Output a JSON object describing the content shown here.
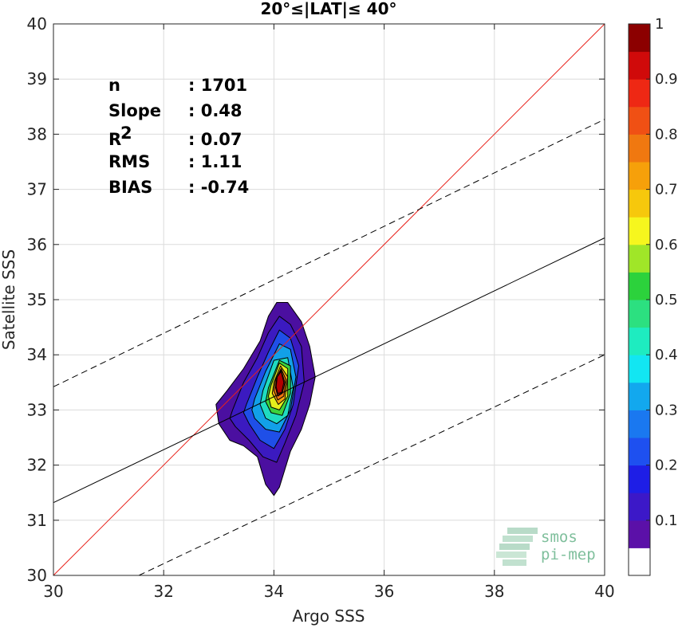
{
  "chart_data": {
    "type": "scatter",
    "subtype": "density-contour",
    "title": "20°≤|LAT|≤ 40°",
    "xlabel": "Argo SSS",
    "ylabel": "Satellite SSS",
    "xlim": [
      30,
      40
    ],
    "ylim": [
      30,
      40
    ],
    "xticks": [
      "30",
      "32",
      "34",
      "36",
      "38",
      "40"
    ],
    "yticks": [
      "30",
      "31",
      "32",
      "33",
      "34",
      "35",
      "36",
      "37",
      "38",
      "39",
      "40"
    ],
    "grid": true,
    "stats": [
      {
        "label": "n",
        "value": ": 1701"
      },
      {
        "label": "Slope",
        "value": ": 0.48"
      },
      {
        "label": "R",
        "sup": "2",
        "value": ": 0.07"
      },
      {
        "label": "RMS",
        "value": ": 1.11"
      },
      {
        "label": "BIAS",
        "value": ": -0.74"
      }
    ],
    "lines": [
      {
        "kind": "one-to-one",
        "color": "#e8221b",
        "style": "solid",
        "x": [
          30,
          40
        ],
        "y": [
          30,
          40
        ]
      },
      {
        "kind": "regression-fit",
        "color": "#000000",
        "style": "solid",
        "x": [
          30,
          40
        ],
        "y": [
          31.32,
          36.12
        ]
      },
      {
        "kind": "upper-bound",
        "color": "#000000",
        "style": "dashed",
        "x": [
          30,
          40
        ],
        "y": [
          33.42,
          38.27
        ]
      },
      {
        "kind": "lower-bound",
        "color": "#000000",
        "style": "dashed",
        "x": [
          31.55,
          40
        ],
        "y": [
          30.0,
          34.0
        ]
      }
    ],
    "density_center": {
      "x": 34.1,
      "y": 33.5
    },
    "contours": [
      {
        "level": 0.05,
        "color": "#4b0fa0",
        "x": [
          32.95,
          33.15,
          33.45,
          33.75,
          33.9,
          34.05,
          34.25,
          34.5,
          34.65,
          34.75,
          34.65,
          34.5,
          34.3,
          34.1,
          34.0,
          33.85,
          33.7,
          33.45,
          33.2,
          33.0,
          32.95
        ],
        "y": [
          33.1,
          33.35,
          33.75,
          34.25,
          34.7,
          34.95,
          34.95,
          34.6,
          34.15,
          33.6,
          33.1,
          32.65,
          32.25,
          31.6,
          31.45,
          31.65,
          32.15,
          32.35,
          32.45,
          32.75,
          33.1
        ]
      },
      {
        "level": 0.1,
        "color": "#3b1ac0",
        "x": [
          33.25,
          33.45,
          33.7,
          33.9,
          34.1,
          34.3,
          34.5,
          34.55,
          34.4,
          34.2,
          34.05,
          33.8,
          33.55,
          33.3,
          33.2,
          33.25
        ],
        "y": [
          33.0,
          33.5,
          33.95,
          34.4,
          34.7,
          34.55,
          34.15,
          33.5,
          32.9,
          32.4,
          32.05,
          32.15,
          32.45,
          32.7,
          32.85,
          33.0
        ]
      },
      {
        "level": 0.2,
        "color": "#1f4fe8",
        "x": [
          33.5,
          33.7,
          33.9,
          34.1,
          34.3,
          34.45,
          34.35,
          34.2,
          34.0,
          33.75,
          33.55,
          33.45,
          33.5
        ],
        "y": [
          33.1,
          33.6,
          34.05,
          34.45,
          34.3,
          33.8,
          33.1,
          32.65,
          32.3,
          32.45,
          32.75,
          32.95,
          33.1
        ]
      },
      {
        "level": 0.3,
        "color": "#12a0e8",
        "x": [
          33.65,
          33.85,
          34.1,
          34.3,
          34.4,
          34.3,
          34.1,
          33.85,
          33.65,
          33.6,
          33.65
        ],
        "y": [
          33.2,
          33.7,
          34.2,
          34.1,
          33.6,
          33.0,
          32.6,
          32.65,
          32.85,
          33.0,
          33.2
        ]
      },
      {
        "level": 0.4,
        "color": "#1fdcc0",
        "x": [
          33.8,
          34.0,
          34.25,
          34.35,
          34.25,
          34.05,
          33.85,
          33.75,
          33.8
        ],
        "y": [
          33.35,
          33.9,
          33.95,
          33.4,
          32.9,
          32.75,
          32.85,
          33.1,
          33.35
        ]
      },
      {
        "level": 0.5,
        "color": "#3cd23c",
        "x": [
          33.9,
          34.1,
          34.3,
          34.3,
          34.15,
          33.95,
          33.85,
          33.9
        ],
        "y": [
          33.4,
          33.9,
          33.8,
          33.3,
          32.9,
          32.95,
          33.15,
          33.4
        ]
      },
      {
        "level": 0.6,
        "color": "#e4ee1c",
        "x": [
          33.95,
          34.1,
          34.25,
          34.25,
          34.1,
          33.95,
          33.9,
          33.95
        ],
        "y": [
          33.45,
          33.85,
          33.75,
          33.25,
          33.0,
          33.05,
          33.25,
          33.45
        ]
      },
      {
        "level": 0.7,
        "color": "#f6a50e",
        "x": [
          34.0,
          34.12,
          34.25,
          34.2,
          34.08,
          33.97,
          34.0
        ],
        "y": [
          33.5,
          33.8,
          33.6,
          33.2,
          33.1,
          33.3,
          33.5
        ]
      },
      {
        "level": 0.8,
        "color": "#f07410",
        "x": [
          34.03,
          34.13,
          34.22,
          34.18,
          34.07,
          34.0,
          34.03
        ],
        "y": [
          33.55,
          33.75,
          33.55,
          33.25,
          33.18,
          33.35,
          33.55
        ]
      },
      {
        "level": 0.9,
        "color": "#e41e1e",
        "x": [
          34.05,
          34.13,
          34.2,
          34.15,
          34.07,
          34.03,
          34.05
        ],
        "y": [
          33.58,
          33.72,
          33.5,
          33.3,
          33.25,
          33.4,
          33.58
        ]
      },
      {
        "level": 0.95,
        "color": "#b20000",
        "x": [
          34.06,
          34.13,
          34.18,
          34.14,
          34.07,
          34.04,
          34.06
        ],
        "y": [
          33.6,
          33.7,
          33.5,
          33.32,
          33.3,
          33.42,
          33.6
        ]
      }
    ],
    "colorbar": {
      "min": 0,
      "max": 1,
      "ticks": [
        "0.1",
        "0.2",
        "0.3",
        "0.4",
        "0.5",
        "0.6",
        "0.7",
        "0.8",
        "0.9",
        "1"
      ],
      "bands": [
        {
          "from": 0.0,
          "to": 0.05,
          "color": "#ffffff"
        },
        {
          "from": 0.05,
          "to": 0.1,
          "color": "#5b10a8"
        },
        {
          "from": 0.1,
          "to": 0.15,
          "color": "#3c18c8"
        },
        {
          "from": 0.15,
          "to": 0.2,
          "color": "#1e1ee6"
        },
        {
          "from": 0.2,
          "to": 0.25,
          "color": "#1e50f0"
        },
        {
          "from": 0.25,
          "to": 0.3,
          "color": "#1a78f0"
        },
        {
          "from": 0.3,
          "to": 0.35,
          "color": "#12a8ee"
        },
        {
          "from": 0.35,
          "to": 0.4,
          "color": "#12e6f2"
        },
        {
          "from": 0.4,
          "to": 0.45,
          "color": "#1eecc0"
        },
        {
          "from": 0.45,
          "to": 0.5,
          "color": "#2ce080"
        },
        {
          "from": 0.5,
          "to": 0.55,
          "color": "#2cd23c"
        },
        {
          "from": 0.55,
          "to": 0.6,
          "color": "#a0e628"
        },
        {
          "from": 0.6,
          "to": 0.65,
          "color": "#f6f61e"
        },
        {
          "from": 0.65,
          "to": 0.7,
          "color": "#f6c80c"
        },
        {
          "from": 0.7,
          "to": 0.75,
          "color": "#f6a00a"
        },
        {
          "from": 0.75,
          "to": 0.8,
          "color": "#f07810"
        },
        {
          "from": 0.8,
          "to": 0.85,
          "color": "#f05014"
        },
        {
          "from": 0.85,
          "to": 0.9,
          "color": "#ee2814"
        },
        {
          "from": 0.9,
          "to": 0.95,
          "color": "#d00a0a"
        },
        {
          "from": 0.95,
          "to": 1.0,
          "color": "#8c0000"
        }
      ]
    }
  },
  "watermark": {
    "line1": "smos",
    "line2": "pi-mep",
    "color": "#7fbf9c"
  }
}
